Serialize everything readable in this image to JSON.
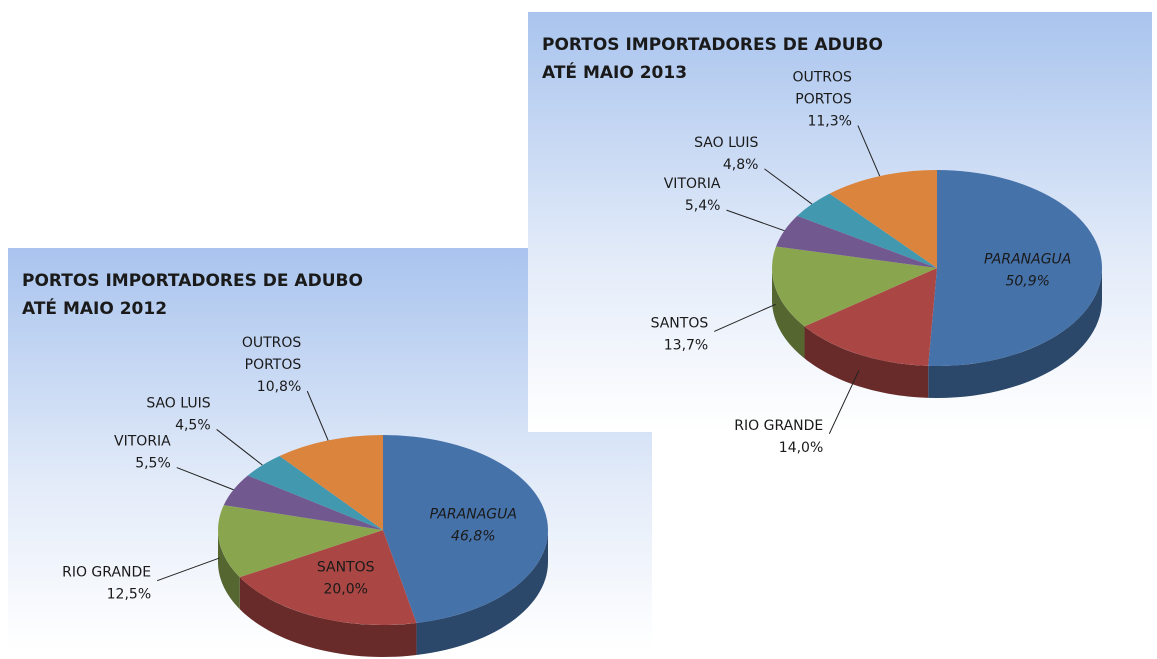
{
  "chart_data": [
    {
      "type": "pie",
      "title": "PORTOS IMPORTADORES DE ADUBO ATÉ MAIO 2012",
      "categories": [
        "PARANAGUA",
        "SANTOS",
        "RIO GRANDE",
        "VITORIA",
        "SAO LUIS",
        "OUTROS PORTOS"
      ],
      "values": [
        46.8,
        20.0,
        12.5,
        5.5,
        4.5,
        10.8
      ],
      "value_labels": [
        "46,8%",
        "20,0%",
        "12,5%",
        "5,5%",
        "4,5%",
        "10,8%"
      ],
      "colors": [
        "#4672aa",
        "#aa4643",
        "#89a54e",
        "#71588f",
        "#4198af",
        "#db843d"
      ]
    },
    {
      "type": "pie",
      "title": "PORTOS IMPORTADORES DE ADUBO ATÉ MAIO 2013",
      "categories": [
        "PARANAGUA",
        "RIO GRANDE",
        "SANTOS",
        "VITORIA",
        "SAO LUIS",
        "OUTROS PORTOS"
      ],
      "values": [
        50.9,
        14.0,
        13.7,
        5.4,
        4.8,
        11.3
      ],
      "value_labels": [
        "50,9%",
        "14,0%",
        "13,7%",
        "5,4%",
        "4,8%",
        "11,3%"
      ],
      "colors": [
        "#4672aa",
        "#aa4643",
        "#89a54e",
        "#71588f",
        "#4198af",
        "#db843d"
      ]
    }
  ]
}
